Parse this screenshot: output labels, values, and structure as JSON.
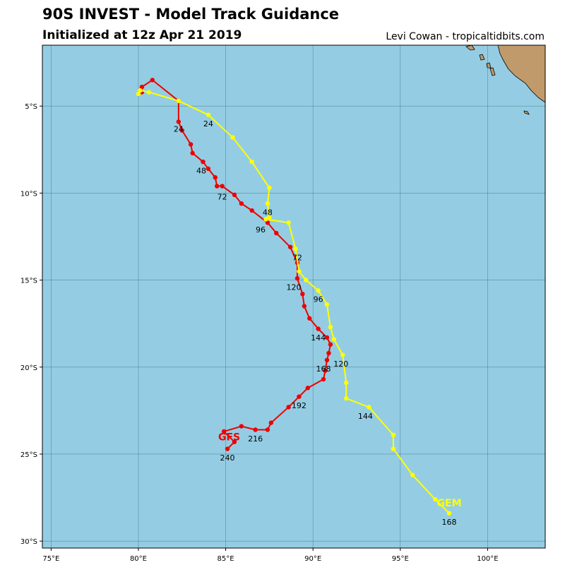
{
  "header": {
    "title": "90S INVEST - Model Track Guidance",
    "subtitle": "Initialized at 12z Apr 21 2019",
    "credit": "Levi Cowan - tropicaltidbits.com"
  },
  "colors": {
    "ocean": "#94cde3",
    "land": "#c19a6b",
    "grid": "#3f6f7f",
    "gfs": "#ee0000",
    "gem": "#ffff00"
  },
  "chart_data": {
    "type": "map-tracks",
    "x_axis": {
      "range": [
        74.5,
        103.3
      ],
      "ticks": [
        75,
        80,
        85,
        90,
        95,
        100
      ],
      "tick_labels": [
        "75°E",
        "80°E",
        "85°E",
        "90°E",
        "95°E",
        "100°E"
      ]
    },
    "y_axis": {
      "range": [
        -30.4,
        -1.5
      ],
      "ticks": [
        -5,
        -10,
        -15,
        -20,
        -25,
        -30
      ],
      "tick_labels": [
        "5°S",
        "10°S",
        "15°S",
        "20°S",
        "25°S",
        "30°S"
      ]
    },
    "grid": true,
    "tracks": [
      {
        "name": "GFS",
        "color": "#ee0000",
        "points": [
          [
            80.2,
            -4.2
          ],
          [
            80.2,
            -3.9
          ],
          [
            80.8,
            -3.5
          ],
          [
            82.3,
            -4.7
          ],
          [
            82.3,
            -5.9
          ],
          [
            82.5,
            -6.4
          ],
          [
            83.0,
            -7.2
          ],
          [
            83.1,
            -7.7
          ],
          [
            83.7,
            -8.2
          ],
          [
            84.0,
            -8.6
          ],
          [
            84.4,
            -9.1
          ],
          [
            84.5,
            -9.6
          ],
          [
            84.8,
            -9.6
          ],
          [
            85.5,
            -10.1
          ],
          [
            85.9,
            -10.6
          ],
          [
            86.5,
            -11.0
          ],
          [
            87.4,
            -11.7
          ],
          [
            87.9,
            -12.3
          ],
          [
            88.7,
            -13.1
          ],
          [
            89.1,
            -14.0
          ],
          [
            89.1,
            -14.9
          ],
          [
            89.4,
            -15.8
          ],
          [
            89.5,
            -16.5
          ],
          [
            89.8,
            -17.2
          ],
          [
            90.3,
            -17.8
          ],
          [
            90.8,
            -18.3
          ],
          [
            91.0,
            -18.7
          ],
          [
            90.9,
            -19.2
          ],
          [
            90.8,
            -19.6
          ],
          [
            90.7,
            -20.2
          ],
          [
            90.6,
            -20.7
          ],
          [
            89.7,
            -21.2
          ],
          [
            89.2,
            -21.7
          ],
          [
            88.6,
            -22.3
          ],
          [
            87.6,
            -23.2
          ],
          [
            87.4,
            -23.6
          ],
          [
            86.7,
            -23.6
          ],
          [
            85.9,
            -23.4
          ],
          [
            84.9,
            -23.7
          ],
          [
            85.5,
            -24.3
          ],
          [
            85.1,
            -24.7
          ]
        ],
        "hour_labels": [
          {
            "text": "24",
            "lon": 82.3,
            "lat": -6.3
          },
          {
            "text": "48",
            "lon": 83.6,
            "lat": -8.7
          },
          {
            "text": "72",
            "lon": 84.8,
            "lat": -10.2
          },
          {
            "text": "96",
            "lon": 87.0,
            "lat": -12.1
          },
          {
            "text": "120",
            "lon": 88.9,
            "lat": -15.4
          },
          {
            "text": "144",
            "lon": 90.3,
            "lat": -18.3
          },
          {
            "text": "168",
            "lon": 90.6,
            "lat": -20.1
          },
          {
            "text": "192",
            "lon": 89.2,
            "lat": -22.2
          },
          {
            "text": "216",
            "lon": 86.7,
            "lat": -24.1
          },
          {
            "text": "240",
            "lon": 85.1,
            "lat": -25.2
          }
        ],
        "model_label": {
          "text": "GFS",
          "lon": 85.2,
          "lat": -24.0
        }
      },
      {
        "name": "GEM",
        "color": "#ffff00",
        "points": [
          [
            80.0,
            -4.3
          ],
          [
            80.1,
            -4.1
          ],
          [
            80.6,
            -4.2
          ],
          [
            82.3,
            -4.7
          ],
          [
            84.0,
            -5.5
          ],
          [
            85.4,
            -6.8
          ],
          [
            86.5,
            -8.2
          ],
          [
            87.5,
            -9.7
          ],
          [
            87.4,
            -10.6
          ],
          [
            87.5,
            -11.4
          ],
          [
            87.3,
            -11.5
          ],
          [
            88.6,
            -11.7
          ],
          [
            89.0,
            -13.2
          ],
          [
            89.2,
            -14.5
          ],
          [
            89.6,
            -15.0
          ],
          [
            90.3,
            -15.6
          ],
          [
            90.8,
            -16.4
          ],
          [
            91.0,
            -17.7
          ],
          [
            91.2,
            -18.4
          ],
          [
            91.7,
            -19.3
          ],
          [
            91.9,
            -20.9
          ],
          [
            91.9,
            -21.8
          ],
          [
            93.2,
            -22.3
          ],
          [
            94.6,
            -23.9
          ],
          [
            94.6,
            -24.7
          ],
          [
            95.7,
            -26.2
          ],
          [
            97.0,
            -27.6
          ],
          [
            97.8,
            -28.4
          ]
        ],
        "hour_labels": [
          {
            "text": "24",
            "lon": 84.0,
            "lat": -6.0
          },
          {
            "text": "48",
            "lon": 87.4,
            "lat": -11.1
          },
          {
            "text": "72",
            "lon": 89.1,
            "lat": -13.7
          },
          {
            "text": "96",
            "lon": 90.3,
            "lat": -16.1
          },
          {
            "text": "120",
            "lon": 91.6,
            "lat": -19.8
          },
          {
            "text": "144",
            "lon": 93.0,
            "lat": -22.8
          },
          {
            "text": "168",
            "lon": 97.8,
            "lat": -28.9
          }
        ],
        "model_label": {
          "text": "GEM",
          "lon": 97.8,
          "lat": -27.8
        }
      }
    ]
  }
}
